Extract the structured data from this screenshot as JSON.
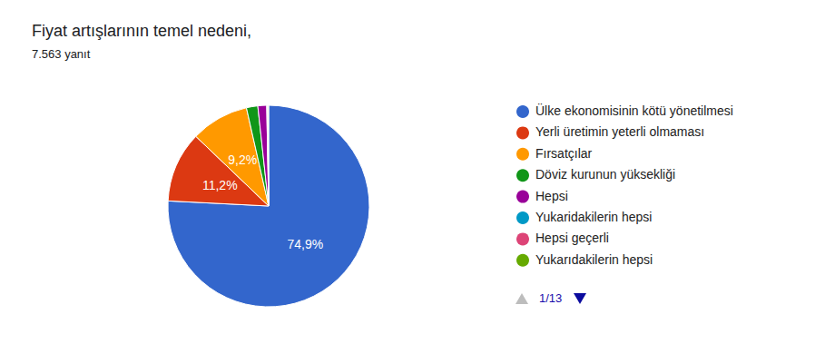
{
  "chart_data": {
    "type": "pie",
    "title": "Fiyat artışlarının temel nedeni,",
    "subtitle": "7.563 yanıt",
    "categories": [
      "Ülke ekonomisinin kötü yönetilmesi",
      "Yerli üretimin yeterli olmaması",
      "Fırsatçılar",
      "Döviz kurunun yüksekliği",
      "Hepsi",
      "Yukaridakilerin hepsi",
      "Hepsi geçerli",
      "Yukarıdakilerin hepsi"
    ],
    "values": [
      74.9,
      11.2,
      9.2,
      1.8,
      1.4,
      0.1,
      0.1,
      0.1
    ],
    "value_labels": [
      "74,9%",
      "11,2%",
      "9,2%",
      null,
      null,
      null,
      null,
      null
    ],
    "colors": [
      "#3366cc",
      "#dc3912",
      "#ff9900",
      "#109618",
      "#990099",
      "#0099c6",
      "#dd4477",
      "#66aa00"
    ],
    "data_labels": true,
    "legend": "right",
    "legend_page": "1/13"
  }
}
